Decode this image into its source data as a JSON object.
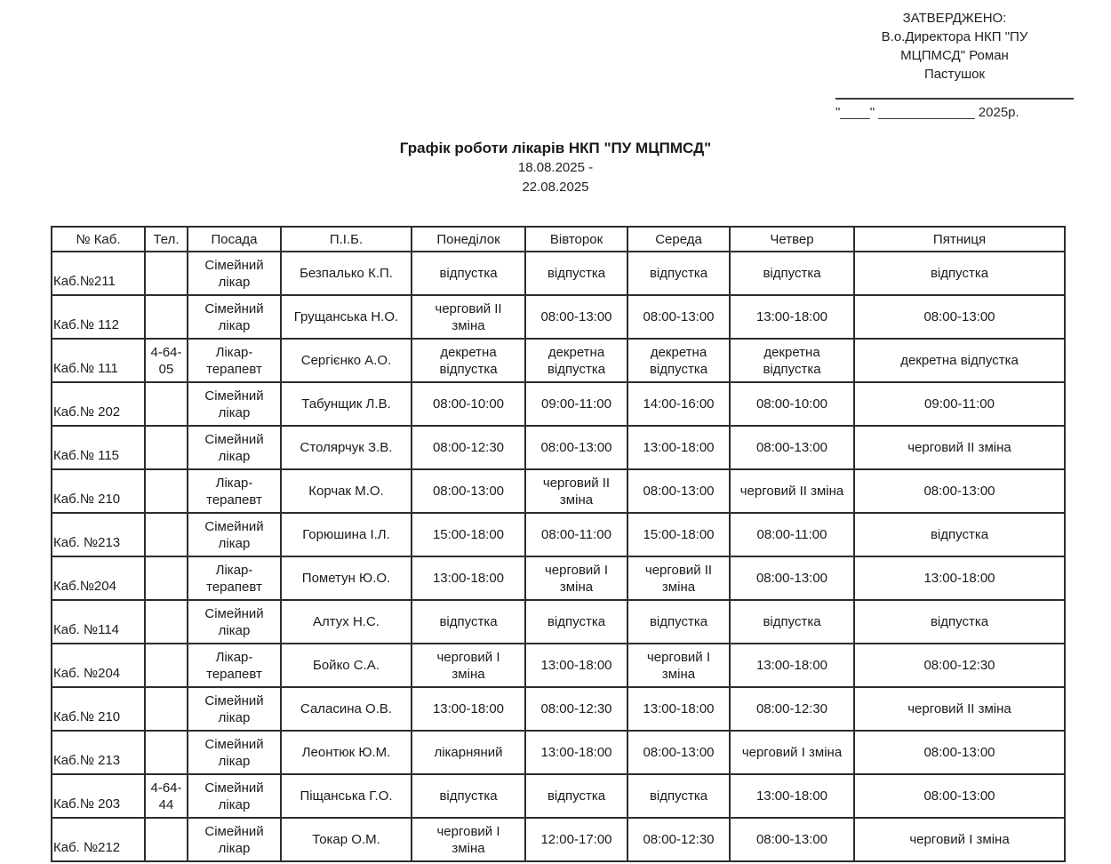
{
  "approval": {
    "lines": [
      "ЗАТВЕРДЖЕНО:",
      "В.о.Директора НКП \"ПУ",
      "МЦПМСД\" Роман",
      "Пастушок"
    ],
    "date_line": "\"____\" _____________ 2025р."
  },
  "title": "Графік роботи лікарів НКП \"ПУ МЦПМСД\"",
  "date_range": {
    "line1": "18.08.2025 -",
    "line2": "22.08.2025"
  },
  "table": {
    "headers": [
      "№ Каб.",
      "Тел.",
      "Посада",
      "П.І.Б.",
      "Понеділок",
      "Вівторок",
      "Середа",
      "Четвер",
      "Пятниця"
    ],
    "rows": [
      [
        "Каб.№211",
        "",
        "Сімейний лікар",
        "Безпалько К.П.",
        "відпустка",
        "відпустка",
        "відпустка",
        "відпустка",
        "відпустка"
      ],
      [
        "Каб.№ 112",
        "",
        "Сімейний лікар",
        "Грущанська Н.О.",
        "черговий II зміна",
        "08:00-13:00",
        "08:00-13:00",
        "13:00-18:00",
        "08:00-13:00"
      ],
      [
        "Каб.№ 111",
        "4-64-05",
        "Лікар-терапевт",
        "Сергієнко А.О.",
        "декретна відпустка",
        "декретна відпустка",
        "декретна відпустка",
        "декретна відпустка",
        "декретна відпустка"
      ],
      [
        "Каб.№ 202",
        "",
        "Сімейний лікар",
        "Табунщик Л.В.",
        "08:00-10:00",
        "09:00-11:00",
        "14:00-16:00",
        "08:00-10:00",
        "09:00-11:00"
      ],
      [
        "Каб.№ 115",
        "",
        "Сімейний лікар",
        "Столярчук З.В.",
        "08:00-12:30",
        "08:00-13:00",
        "13:00-18:00",
        "08:00-13:00",
        "черговий II зміна"
      ],
      [
        "Каб.№ 210",
        "",
        "Лікар-терапевт",
        "Корчак М.О.",
        "08:00-13:00",
        "черговий II зміна",
        "08:00-13:00",
        "черговий II зміна",
        "08:00-13:00"
      ],
      [
        "Каб. №213",
        "",
        "Сімейний лікар",
        "Горюшина І.Л.",
        "15:00-18:00",
        "08:00-11:00",
        "15:00-18:00",
        "08:00-11:00",
        "відпустка"
      ],
      [
        "Каб.№204",
        "",
        "Лікар-терапевт",
        "Пометун Ю.О.",
        "13:00-18:00",
        "черговий I зміна",
        "черговий II зміна",
        "08:00-13:00",
        "13:00-18:00"
      ],
      [
        "Каб. №114",
        "",
        "Сімейний лікар",
        "Алтух Н.С.",
        "відпустка",
        "відпустка",
        "відпустка",
        "відпустка",
        "відпустка"
      ],
      [
        "Каб. №204",
        "",
        "Лікар-терапевт",
        "Бойко С.А.",
        "черговий I зміна",
        "13:00-18:00",
        "черговий I зміна",
        "13:00-18:00",
        "08:00-12:30"
      ],
      [
        "Каб.№ 210",
        "",
        "Сімейний лікар",
        "Саласина О.В.",
        "13:00-18:00",
        "08:00-12:30",
        "13:00-18:00",
        "08:00-12:30",
        "черговий II зміна"
      ],
      [
        "Каб.№ 213",
        "",
        "Сімейний лікар",
        "Леонтюк Ю.М.",
        "лікарняний",
        "13:00-18:00",
        "08:00-13:00",
        "черговий I зміна",
        "08:00-13:00"
      ],
      [
        "Каб.№ 203",
        "4-64-44",
        "Сімейний лікар",
        "Піщанська Г.О.",
        "відпустка",
        "відпустка",
        "відпустка",
        "13:00-18:00",
        "08:00-13:00"
      ],
      [
        "Каб. №212",
        "",
        "Сімейний лікар",
        "Токар О.М.",
        "черговий I зміна",
        "12:00-17:00",
        "08:00-12:30",
        "08:00-13:00",
        "черговий I зміна"
      ]
    ]
  }
}
